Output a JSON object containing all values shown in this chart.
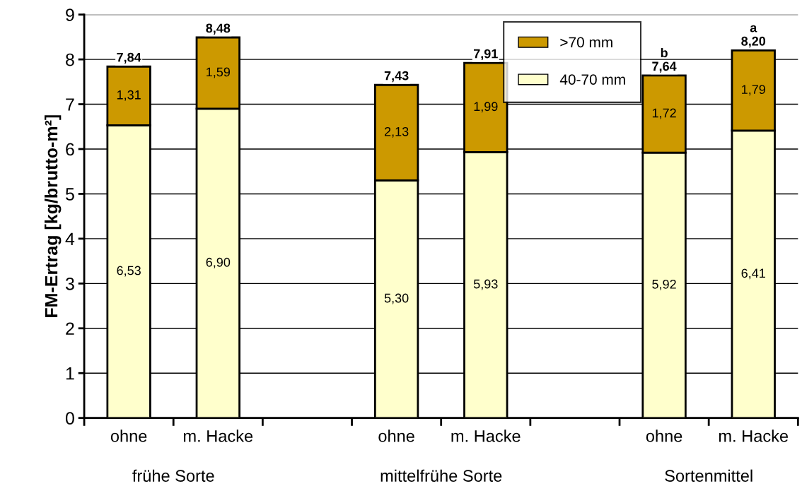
{
  "chart_data": {
    "type": "bar",
    "stacked": true,
    "categories": [
      "ohne",
      "m. Hacke",
      null,
      "ohne",
      "m. Hacke",
      null,
      "ohne",
      "m. Hacke"
    ],
    "series": [
      {
        "name": "40-70 mm",
        "color": "#ffffcc",
        "values": [
          6.53,
          6.9,
          null,
          5.3,
          5.93,
          null,
          5.92,
          6.41
        ],
        "value_labels": [
          "6,53",
          "6,90",
          null,
          "5,30",
          "5,93",
          null,
          "5,92",
          "6,41"
        ]
      },
      {
        "name": ">70 mm",
        "color": "#cc9900",
        "values": [
          1.31,
          1.59,
          null,
          2.13,
          1.99,
          null,
          1.72,
          1.79
        ],
        "value_labels": [
          "1,31",
          "1,59",
          null,
          "2,13",
          "1,99",
          null,
          "1,72",
          "1,79"
        ]
      }
    ],
    "totals": [
      "7,84",
      "8,48",
      null,
      "7,43",
      "7,91",
      null,
      "7,64",
      "8,20"
    ],
    "ylabel": "FM-Ertrag [kg/brutto-m²]",
    "ylim": [
      0,
      9
    ],
    "yticks": [
      0,
      1,
      2,
      3,
      4,
      5,
      6,
      7,
      8,
      9
    ],
    "grid": "y",
    "legend": "top right",
    "annotations": [
      "frühe Sorte",
      "mittelfrühe Sorte",
      "Sortenmittel",
      "b",
      "a"
    ]
  }
}
